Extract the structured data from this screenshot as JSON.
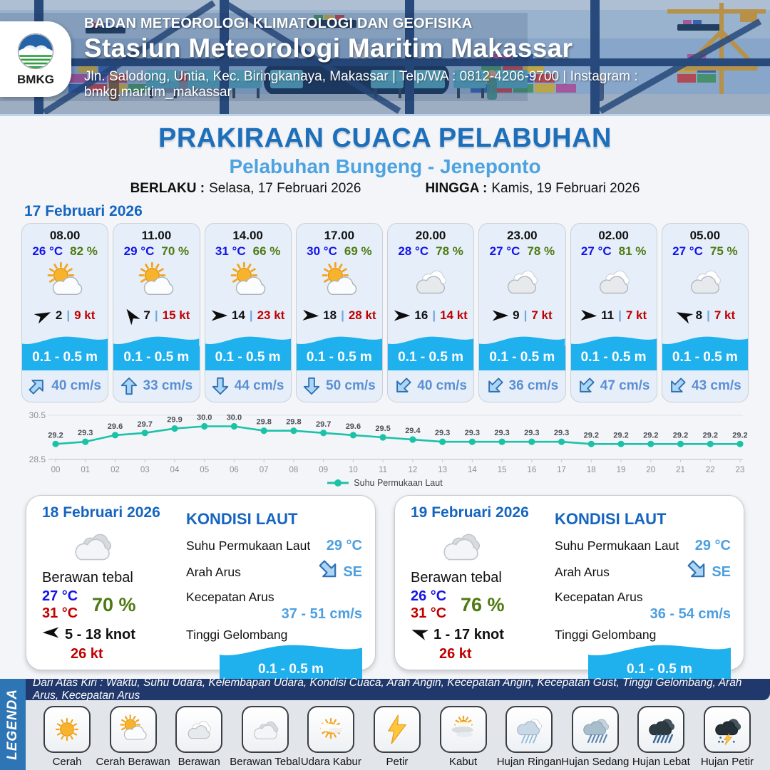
{
  "header": {
    "logo_label": "BMKG",
    "org": "BADAN METEOROLOGI KLIMATOLOGI DAN GEOFISIKA",
    "station": "Stasiun Meteorologi Maritim Makassar",
    "address": "Jln. Salodong, Untia, Kec. Biringkanaya, Makassar | Telp/WA : 0812-4206-9700 | Instagram : bmkg.maritim_makassar"
  },
  "title": {
    "main": "PRAKIRAAN CUACA PELABUHAN",
    "subtitle": "Pelabuhan Bungeng - Jeneponto",
    "berlaku_label": "BERLAKU :",
    "berlaku_value": "Selasa, 17 Februari 2026",
    "hingga_label": "HINGGA :",
    "hingga_value": "Kamis, 19 Februari 2026"
  },
  "hourly": {
    "date": "17 Februari 2026",
    "cards": [
      {
        "time": "08.00",
        "temp": "26 °C",
        "rh": "82 %",
        "icon": "cerah-berawan",
        "wind_deg": -25,
        "wind": "2",
        "gust": "9 kt",
        "wave": "0.1 - 0.5 m",
        "cur_deg": 45,
        "cur": "40 cm/s"
      },
      {
        "time": "11.00",
        "temp": "29 °C",
        "rh": "70 %",
        "icon": "cerah-berawan",
        "wind_deg": -125,
        "wind": "7",
        "gust": "15 kt",
        "wave": "0.1 - 0.5 m",
        "cur_deg": 0,
        "cur": "33 cm/s"
      },
      {
        "time": "14.00",
        "temp": "31 °C",
        "rh": "66 %",
        "icon": "cerah-berawan",
        "wind_deg": 0,
        "wind": "14",
        "gust": "23 kt",
        "wave": "0.1 - 0.5 m",
        "cur_deg": 180,
        "cur": "44 cm/s"
      },
      {
        "time": "17.00",
        "temp": "30 °C",
        "rh": "69 %",
        "icon": "cerah-berawan",
        "wind_deg": 3,
        "wind": "18",
        "gust": "28 kt",
        "wave": "0.1 - 0.5 m",
        "cur_deg": 180,
        "cur": "50 cm/s"
      },
      {
        "time": "20.00",
        "temp": "28 °C",
        "rh": "78 %",
        "icon": "berawan",
        "wind_deg": 0,
        "wind": "16",
        "gust": "14 kt",
        "wave": "0.1 - 0.5 m",
        "cur_deg": 225,
        "cur": "40 cm/s"
      },
      {
        "time": "23.00",
        "temp": "27 °C",
        "rh": "78 %",
        "icon": "berawan",
        "wind_deg": 0,
        "wind": "9",
        "gust": "7 kt",
        "wave": "0.1 - 0.5 m",
        "cur_deg": 225,
        "cur": "36 cm/s"
      },
      {
        "time": "02.00",
        "temp": "27 °C",
        "rh": "81 %",
        "icon": "berawan",
        "wind_deg": 3,
        "wind": "11",
        "gust": "7 kt",
        "wave": "0.1 - 0.5 m",
        "cur_deg": 225,
        "cur": "47 cm/s"
      },
      {
        "time": "05.00",
        "temp": "27 °C",
        "rh": "75 %",
        "icon": "berawan",
        "wind_deg": -155,
        "wind": "8",
        "gust": "7 kt",
        "wave": "0.1 - 0.5 m",
        "cur_deg": 225,
        "cur": "43 cm/s"
      }
    ]
  },
  "chart_data": {
    "type": "line",
    "x": [
      "00",
      "01",
      "02",
      "03",
      "04",
      "05",
      "06",
      "07",
      "08",
      "09",
      "10",
      "11",
      "12",
      "13",
      "14",
      "15",
      "16",
      "17",
      "18",
      "19",
      "20",
      "21",
      "22",
      "23"
    ],
    "series": [
      {
        "name": "Suhu Permukaan Laut",
        "values": [
          29.2,
          29.3,
          29.6,
          29.7,
          29.9,
          30.0,
          30.0,
          29.8,
          29.8,
          29.7,
          29.6,
          29.5,
          29.4,
          29.3,
          29.3,
          29.3,
          29.3,
          29.3,
          29.2,
          29.2,
          29.2,
          29.2,
          29.2,
          29.2
        ]
      }
    ],
    "ylim": [
      28.5,
      30.5
    ],
    "yticks": [
      28.5,
      30.5
    ],
    "grid": true,
    "legend_position": "bottom",
    "line_color": "#1CC2A8"
  },
  "days": [
    {
      "date": "18 Februari 2026",
      "icon": "berawan-tebal",
      "condition": "Berawan tebal",
      "temp_min": "27 °C",
      "temp_max": "31 °C",
      "humidity": "70 %",
      "wind_deg": 180,
      "wind_range": "5 - 18 knot",
      "gust": "26 kt",
      "sea": {
        "title": "KONDISI LAUT",
        "sst_label": "Suhu Permukaan Laut",
        "sst": "29 °C",
        "current_dir_label": "Arah Arus",
        "current_dir": "SE",
        "current_dir_deg": 135,
        "current_speed_label": "Kecepatan Arus",
        "current_speed": "37 - 51 cm/s",
        "wave_label": "Tinggi Gelombang",
        "wave": "0.1 - 0.5 m"
      }
    },
    {
      "date": "19 Februari 2026",
      "icon": "berawan-tebal",
      "condition": "Berawan tebal",
      "temp_min": "26 °C",
      "temp_max": "31 °C",
      "humidity": "76 %",
      "wind_deg": -160,
      "wind_range": "1 - 17 knot",
      "gust": "26 kt",
      "sea": {
        "title": "KONDISI LAUT",
        "sst_label": "Suhu Permukaan Laut",
        "sst": "29 °C",
        "current_dir_label": "Arah Arus",
        "current_dir": "SE",
        "current_dir_deg": 135,
        "current_speed_label": "Kecepatan Arus",
        "current_speed": "36 - 54 cm/s",
        "wave_label": "Tinggi Gelombang",
        "wave": "0.1 - 0.5 m"
      }
    }
  ],
  "legend": {
    "title": "LEGENDA",
    "description": "Dari Atas Kiri : Waktu, Suhu Udara, Kelembapan Udara, Kondisi Cuaca, Arah Angin, Kecepatan Angin, Kecepatan Gust, Tinggi Gelombang, Arah Arus, Kecepatan Arus",
    "items": [
      {
        "label": "Cerah",
        "icon": "cerah"
      },
      {
        "label": "Cerah Berawan",
        "icon": "cerah-berawan"
      },
      {
        "label": "Berawan",
        "icon": "berawan"
      },
      {
        "label": "Berawan Tebal",
        "icon": "berawan-tebal"
      },
      {
        "label": "Udara Kabur",
        "icon": "udara-kabur"
      },
      {
        "label": "Petir",
        "icon": "petir"
      },
      {
        "label": "Kabut",
        "icon": "kabut"
      },
      {
        "label": "Hujan Ringan",
        "icon": "hujan-ringan"
      },
      {
        "label": "Hujan Sedang",
        "icon": "hujan-sedang"
      },
      {
        "label": "Hujan Lebat",
        "icon": "hujan-lebat"
      },
      {
        "label": "Hujan Petir",
        "icon": "hujan-petir"
      }
    ]
  },
  "colors": {
    "title_blue": "#1E6FBA",
    "subtitle_blue": "#4DA3E0",
    "date_blue": "#1565C0",
    "temp_blue": "#1414E8",
    "humidity_green": "#4E7A12",
    "gust_red": "#C00000",
    "wave_blue": "#1FB0EE",
    "current_text_blue": "#5B8FD4",
    "chart_teal": "#1CC2A8",
    "legend_navy": "#20386B",
    "legend_strip_blue": "#2E75B6"
  }
}
